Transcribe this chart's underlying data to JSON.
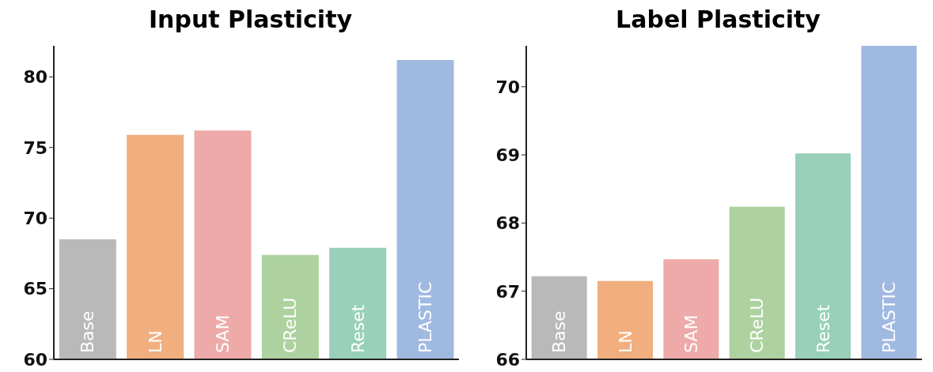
{
  "chart_data": [
    {
      "type": "bar",
      "title": "Input Plasticity",
      "categories": [
        "Base",
        "LN",
        "SAM",
        "CReLU",
        "Reset",
        "PLASTIC"
      ],
      "values": [
        68.5,
        75.9,
        76.2,
        67.4,
        67.9,
        81.2
      ],
      "colors": [
        "#b9b9b9",
        "#f1ae7e",
        "#eeaaa9",
        "#add2a0",
        "#98d0b9",
        "#a0b9e1"
      ],
      "ylim": [
        60,
        82.2
      ],
      "yticks": [
        60,
        65,
        70,
        75,
        80
      ],
      "tick_labels": "y"
    },
    {
      "type": "bar",
      "title": "Label Plasticity",
      "categories": [
        "Base",
        "LN",
        "SAM",
        "CReLU",
        "Reset",
        "PLASTIC"
      ],
      "values": [
        67.22,
        67.15,
        67.47,
        68.24,
        69.02,
        70.6
      ],
      "colors": [
        "#b9b9b9",
        "#f1ae7e",
        "#eeaaa9",
        "#add2a0",
        "#98d0b9",
        "#a0b9e1"
      ],
      "ylim": [
        66,
        70.6
      ],
      "yticks": [
        66,
        67,
        68,
        69,
        70
      ],
      "tick_labels": "y"
    }
  ]
}
